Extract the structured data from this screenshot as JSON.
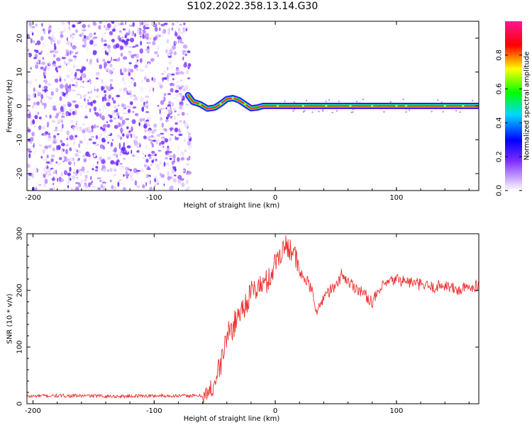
{
  "title": "S102.2022.358.13.14.G30",
  "chart_data": [
    {
      "type": "heatmap",
      "xlabel": "Height of straight line (km)",
      "ylabel": "Frequency (Hz)",
      "xlim": [
        -205,
        168
      ],
      "ylim": [
        -25,
        25
      ],
      "xticks": [
        -200,
        -100,
        0,
        100
      ],
      "yticks": [
        -20,
        -10,
        0,
        10,
        20
      ],
      "colorbar": {
        "label": "Normalized spectral amplitude",
        "range": [
          0,
          1
        ],
        "ticks": [
          0.0,
          0.2,
          0.4,
          0.6,
          0.8
        ],
        "colors": [
          "#ffffff",
          "#7a2cff",
          "#0000ff",
          "#00d8ff",
          "#00ff00",
          "#ffff00",
          "#ff0000",
          "#ff1493"
        ]
      },
      "noise_region": {
        "x_from": -205,
        "x_to": -70
      },
      "signal_track": [
        {
          "x": -72,
          "freq": 3.2
        },
        {
          "x": -68,
          "freq": 1.2
        },
        {
          "x": -62,
          "freq": 0.5
        },
        {
          "x": -56,
          "freq": -0.8
        },
        {
          "x": -50,
          "freq": -0.5
        },
        {
          "x": -45,
          "freq": 0.6
        },
        {
          "x": -40,
          "freq": 2.0
        },
        {
          "x": -35,
          "freq": 2.3
        },
        {
          "x": -30,
          "freq": 1.7
        },
        {
          "x": -25,
          "freq": 0.5
        },
        {
          "x": -20,
          "freq": -0.7
        },
        {
          "x": -15,
          "freq": -0.5
        },
        {
          "x": -10,
          "freq": 0.0
        },
        {
          "x": 0,
          "freq": 0.0
        },
        {
          "x": 168,
          "freq": 0.0
        }
      ]
    },
    {
      "type": "line",
      "xlabel": "Height of straight line (km)",
      "ylabel": "SNR (10 * v/v)",
      "xlim": [
        -205,
        168
      ],
      "ylim": [
        0,
        300
      ],
      "xticks": [
        -200,
        -100,
        0,
        100
      ],
      "yticks": [
        0,
        100,
        200,
        300
      ],
      "color": "#ee3333",
      "series": [
        {
          "x": [
            -205,
            -190,
            -170,
            -150,
            -130,
            -110,
            -90,
            -75,
            -70,
            -60,
            -55,
            -50,
            -45,
            -40,
            -35,
            -30,
            -25,
            -20,
            -15,
            -10,
            -5,
            0,
            5,
            10,
            15,
            20,
            25,
            30,
            35,
            40,
            45,
            50,
            55,
            60,
            70,
            80,
            90,
            100,
            110,
            120,
            130,
            140,
            150,
            160,
            168
          ],
          "values": [
            13,
            14,
            14,
            14,
            13,
            14,
            14,
            14,
            14,
            14,
            15,
            40,
            70,
            120,
            135,
            160,
            175,
            195,
            205,
            210,
            220,
            250,
            270,
            280,
            270,
            230,
            220,
            200,
            160,
            190,
            200,
            205,
            230,
            215,
            200,
            180,
            210,
            220,
            215,
            210,
            205,
            210,
            200,
            205,
            210
          ]
        }
      ]
    }
  ]
}
